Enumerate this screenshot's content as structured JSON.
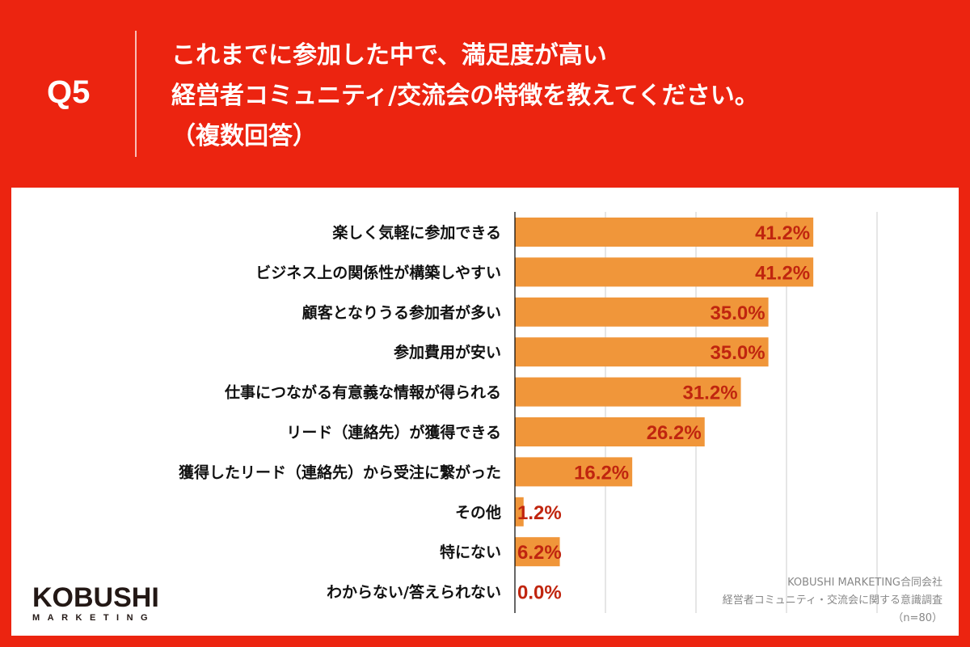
{
  "header": {
    "question_number": "Q5",
    "title_lines": [
      "これまでに参加した中で、満足度が高い",
      "経営者コミュニティ/交流会の特徴を教えてください。",
      "（複数回答）"
    ]
  },
  "logo": {
    "main": "KOBUSHI",
    "sub": "MARKETING"
  },
  "source": {
    "company": "KOBUSHI MARKETING合同会社",
    "survey": "経営者コミュニティ・交流会に関する意識調査",
    "sample": "（n=80）"
  },
  "colors": {
    "background": "#EC2410",
    "bar": "#F0963A",
    "value_label": "#C0250F",
    "grid": "#cccccc"
  },
  "chart_data": {
    "type": "bar",
    "orientation": "horizontal",
    "categories": [
      "楽しく気軽に参加できる",
      "ビジネス上の関係性が構築しやすい",
      "顧客となりうる参加者が多い",
      "参加費用が安い",
      "仕事につながる有意義な情報が得られる",
      "リード（連絡先）が獲得できる",
      "獲得したリード（連絡先）から受注に繋がった",
      "その他",
      "特にない",
      "わからない/答えられない"
    ],
    "values": [
      41.2,
      41.2,
      35.0,
      35.0,
      31.2,
      26.2,
      16.2,
      1.2,
      6.2,
      0.0
    ],
    "data_labels": [
      "41.2%",
      "41.2%",
      "35.0%",
      "35.0%",
      "31.2%",
      "26.2%",
      "16.2%",
      "1.2%",
      "6.2%",
      "0.0%"
    ],
    "xlim": [
      0,
      50
    ],
    "grid_step": 12.5,
    "grid": true,
    "unit": "%"
  }
}
